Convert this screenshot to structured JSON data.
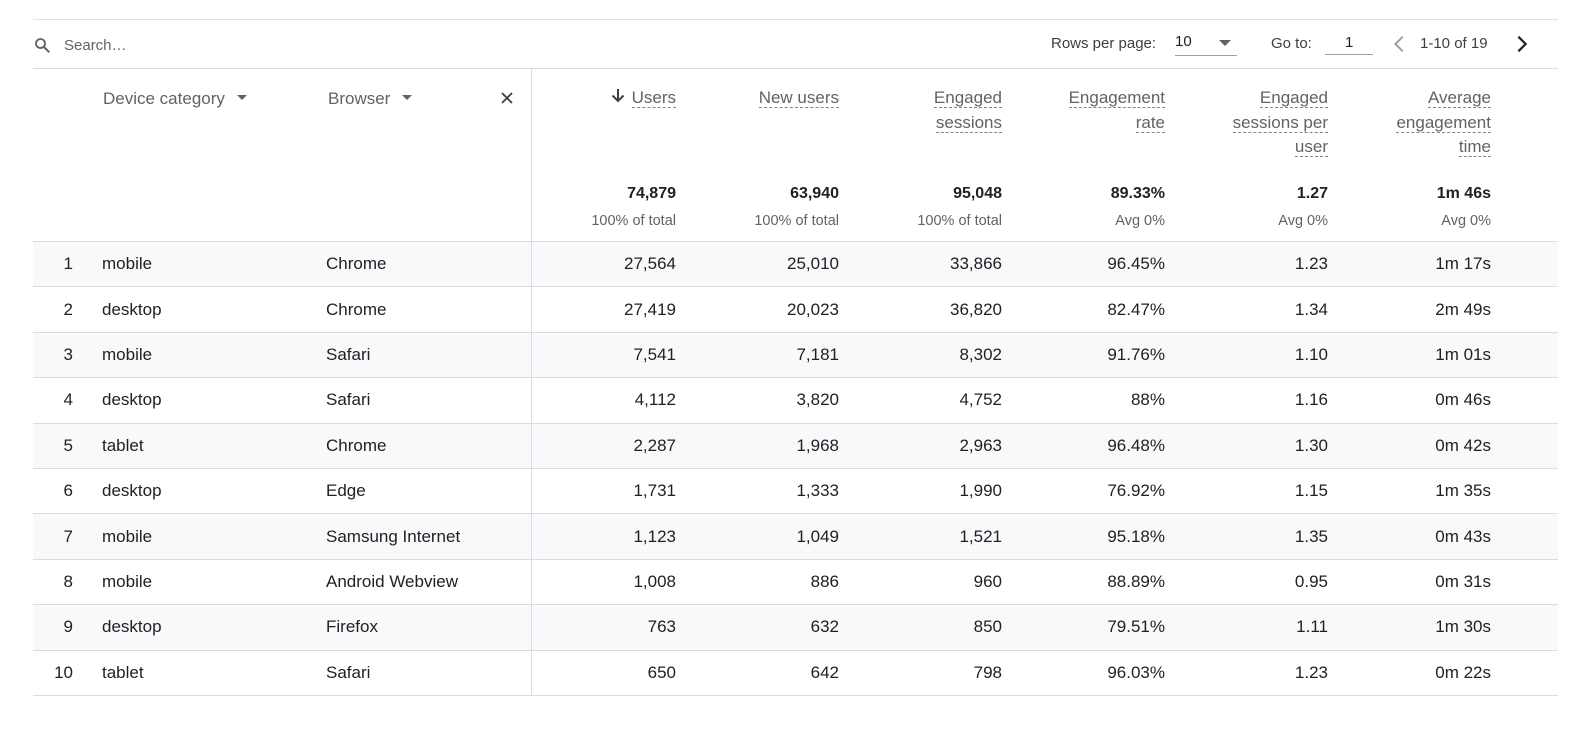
{
  "toolbar": {
    "search_placeholder": "Search…",
    "rows_per_page_label": "Rows per page:",
    "rows_per_page_value": "10",
    "goto_label": "Go to:",
    "goto_value": "1",
    "page_range": "1-10 of 19"
  },
  "dimensions": {
    "device": "Device category",
    "browser": "Browser"
  },
  "metrics": [
    {
      "lines": [
        "Users"
      ],
      "sorted": true,
      "total": "74,879",
      "sub": "100% of total"
    },
    {
      "lines": [
        "New users"
      ],
      "sorted": false,
      "total": "63,940",
      "sub": "100% of total"
    },
    {
      "lines": [
        "Engaged",
        "sessions"
      ],
      "sorted": false,
      "total": "95,048",
      "sub": "100% of total"
    },
    {
      "lines": [
        "Engagement",
        "rate"
      ],
      "sorted": false,
      "total": "89.33%",
      "sub": "Avg 0%"
    },
    {
      "lines": [
        "Engaged",
        "sessions per",
        "user"
      ],
      "sorted": false,
      "total": "1.27",
      "sub": "Avg 0%"
    },
    {
      "lines": [
        "Average",
        "engagement",
        "time"
      ],
      "sorted": false,
      "total": "1m 46s",
      "sub": "Avg 0%"
    }
  ],
  "rows": [
    {
      "idx": "1",
      "device": "mobile",
      "browser": "Chrome",
      "values": [
        "27,564",
        "25,010",
        "33,866",
        "96.45%",
        "1.23",
        "1m 17s"
      ]
    },
    {
      "idx": "2",
      "device": "desktop",
      "browser": "Chrome",
      "values": [
        "27,419",
        "20,023",
        "36,820",
        "82.47%",
        "1.34",
        "2m 49s"
      ]
    },
    {
      "idx": "3",
      "device": "mobile",
      "browser": "Safari",
      "values": [
        "7,541",
        "7,181",
        "8,302",
        "91.76%",
        "1.10",
        "1m 01s"
      ]
    },
    {
      "idx": "4",
      "device": "desktop",
      "browser": "Safari",
      "values": [
        "4,112",
        "3,820",
        "4,752",
        "88%",
        "1.16",
        "0m 46s"
      ]
    },
    {
      "idx": "5",
      "device": "tablet",
      "browser": "Chrome",
      "values": [
        "2,287",
        "1,968",
        "2,963",
        "96.48%",
        "1.30",
        "0m 42s"
      ]
    },
    {
      "idx": "6",
      "device": "desktop",
      "browser": "Edge",
      "values": [
        "1,731",
        "1,333",
        "1,990",
        "76.92%",
        "1.15",
        "1m 35s"
      ]
    },
    {
      "idx": "7",
      "device": "mobile",
      "browser": "Samsung Internet",
      "values": [
        "1,123",
        "1,049",
        "1,521",
        "95.18%",
        "1.35",
        "0m 43s"
      ]
    },
    {
      "idx": "8",
      "device": "mobile",
      "browser": "Android Webview",
      "values": [
        "1,008",
        "886",
        "960",
        "88.89%",
        "0.95",
        "0m 31s"
      ]
    },
    {
      "idx": "9",
      "device": "desktop",
      "browser": "Firefox",
      "values": [
        "763",
        "632",
        "850",
        "79.51%",
        "1.11",
        "1m 30s"
      ]
    },
    {
      "idx": "10",
      "device": "tablet",
      "browser": "Safari",
      "values": [
        "650",
        "642",
        "798",
        "96.03%",
        "1.23",
        "0m 22s"
      ]
    }
  ]
}
